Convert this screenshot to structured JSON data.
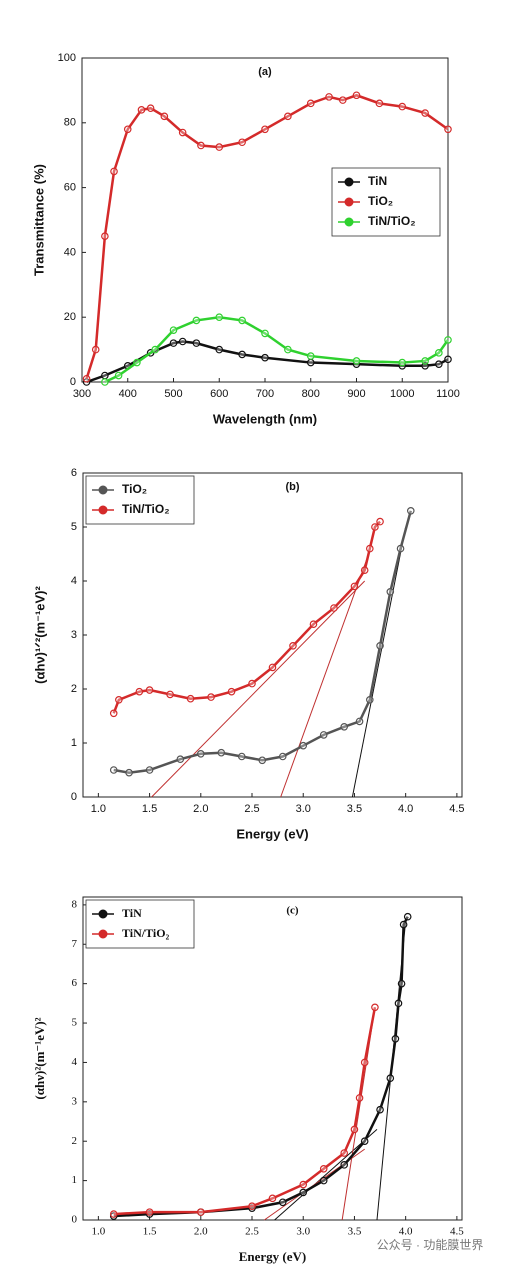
{
  "chart_data": [
    {
      "type": "line",
      "title": "(a)",
      "xlabel": "Wavelength (nm)",
      "ylabel": "Transmittance (%)",
      "xlim": [
        300,
        1100
      ],
      "xticks": [
        300,
        400,
        500,
        600,
        700,
        800,
        900,
        1000,
        1100
      ],
      "ylim": [
        0,
        100
      ],
      "yticks": [
        0,
        20,
        40,
        60,
        80,
        100
      ],
      "legend": "right",
      "series": [
        {
          "name": "TiN",
          "color": "#111111",
          "x": [
            310,
            350,
            400,
            450,
            500,
            520,
            550,
            600,
            650,
            700,
            800,
            900,
            1000,
            1050,
            1080,
            1100
          ],
          "values": [
            0,
            2,
            5,
            9,
            12,
            12.5,
            12,
            10,
            8.5,
            7.5,
            6,
            5.5,
            5,
            5,
            5.5,
            7
          ]
        },
        {
          "name": "TiO₂",
          "color": "#d42a2a",
          "x": [
            310,
            330,
            350,
            370,
            400,
            430,
            450,
            480,
            520,
            560,
            600,
            650,
            700,
            750,
            800,
            840,
            870,
            900,
            950,
            1000,
            1050,
            1100
          ],
          "values": [
            1,
            10,
            45,
            65,
            78,
            84,
            84.5,
            82,
            77,
            73,
            72.5,
            74,
            78,
            82,
            86,
            88,
            87,
            88.5,
            86,
            85,
            83,
            78
          ]
        },
        {
          "name": "TiN/TiO₂",
          "color": "#2fd12f",
          "x": [
            350,
            380,
            420,
            460,
            500,
            550,
            600,
            650,
            700,
            750,
            800,
            900,
            1000,
            1050,
            1080,
            1100
          ],
          "values": [
            0,
            2,
            6,
            10,
            16,
            19,
            20,
            19,
            15,
            10,
            8,
            6.5,
            6,
            6.5,
            9,
            13
          ]
        }
      ]
    },
    {
      "type": "line",
      "title": "(b)",
      "xlabel": "Energy (eV)",
      "ylabel": "(αhν)¹ᐟ²(m⁻¹eV)²",
      "xlim": [
        0.85,
        4.55
      ],
      "xticks": [
        {
          "value": 1,
          "label": "1.0"
        },
        1.5,
        {
          "value": 2,
          "label": "2.0"
        },
        2.5,
        {
          "value": 3,
          "label": "3.0"
        },
        3.5,
        {
          "value": 4,
          "label": "4.0"
        },
        4.5
      ],
      "ylim": [
        0,
        6
      ],
      "yticks": [
        0,
        1,
        2,
        3,
        4,
        5,
        6
      ],
      "legend": "upper left",
      "series": [
        {
          "name": "TiO₂",
          "color": "#555555",
          "x": [
            1.15,
            1.3,
            1.5,
            1.8,
            2.0,
            2.2,
            2.4,
            2.6,
            2.8,
            3.0,
            3.2,
            3.4,
            3.55,
            3.65,
            3.75,
            3.85,
            3.95,
            4.05
          ],
          "values": [
            0.5,
            0.45,
            0.5,
            0.7,
            0.8,
            0.82,
            0.75,
            0.68,
            0.75,
            0.95,
            1.15,
            1.3,
            1.4,
            1.8,
            2.8,
            3.8,
            4.6,
            5.3
          ]
        },
        {
          "name": "TiN/TiO₂",
          "color": "#d42a2a",
          "x": [
            1.15,
            1.2,
            1.4,
            1.5,
            1.7,
            1.9,
            2.1,
            2.3,
            2.5,
            2.7,
            2.9,
            3.1,
            3.3,
            3.5,
            3.6,
            3.65,
            3.7,
            3.75
          ],
          "values": [
            1.55,
            1.8,
            1.95,
            1.98,
            1.9,
            1.82,
            1.85,
            1.95,
            2.1,
            2.4,
            2.8,
            3.2,
            3.5,
            3.9,
            4.2,
            4.6,
            5.0,
            5.1
          ]
        }
      ],
      "fit_lines": [
        {
          "color": "#c03030",
          "x": [
            1.52,
            3.6
          ],
          "values": [
            0,
            4.0
          ]
        },
        {
          "color": "#c03030",
          "x": [
            2.78,
            3.62
          ],
          "values": [
            0,
            4.4
          ]
        },
        {
          "color": "#111111",
          "x": [
            3.48,
            4.0
          ],
          "values": [
            0,
            5.0
          ]
        }
      ]
    },
    {
      "type": "line",
      "title": "(c)",
      "xlabel": "Energy (eV)",
      "ylabel": "(αhν)²(m⁻¹eV)²",
      "xlim": [
        0.85,
        4.55
      ],
      "xticks": [
        {
          "value": 1,
          "label": "1.0"
        },
        1.5,
        {
          "value": 2,
          "label": "2.0"
        },
        2.5,
        {
          "value": 3,
          "label": "3.0"
        },
        3.5,
        {
          "value": 4,
          "label": "4.0"
        },
        4.5
      ],
      "ylim": [
        0,
        8.2
      ],
      "yticks": [
        0,
        1,
        2,
        3,
        4,
        5,
        6,
        7,
        8
      ],
      "legend": "upper left",
      "series": [
        {
          "name": "TiN",
          "color": "#111111",
          "x": [
            1.15,
            1.5,
            2.0,
            2.5,
            2.8,
            3.0,
            3.2,
            3.4,
            3.6,
            3.75,
            3.85,
            3.9,
            3.93,
            3.96,
            3.98,
            4.02
          ],
          "values": [
            0.1,
            0.15,
            0.2,
            0.3,
            0.45,
            0.7,
            1.0,
            1.4,
            2.0,
            2.8,
            3.6,
            4.6,
            5.5,
            6.0,
            7.5,
            7.7
          ]
        },
        {
          "name": "TiN/TiO₂",
          "color": "#d42a2a",
          "x": [
            1.15,
            1.5,
            2.0,
            2.5,
            2.7,
            3.0,
            3.2,
            3.4,
            3.5,
            3.55,
            3.6,
            3.7
          ],
          "values": [
            0.15,
            0.2,
            0.2,
            0.35,
            0.55,
            0.9,
            1.3,
            1.7,
            2.3,
            3.1,
            4.0,
            5.4
          ]
        }
      ],
      "fit_lines": [
        {
          "color": "#111111",
          "x": [
            2.72,
            3.72
          ],
          "values": [
            0,
            2.3
          ]
        },
        {
          "color": "#111111",
          "x": [
            3.72,
            4.0
          ],
          "values": [
            0,
            7.6
          ]
        },
        {
          "color": "#c03030",
          "x": [
            2.62,
            3.6
          ],
          "values": [
            0,
            1.8
          ]
        },
        {
          "color": "#c03030",
          "x": [
            3.38,
            3.7
          ],
          "values": [
            0,
            5.4
          ]
        }
      ]
    }
  ],
  "watermark": "公众号 · 功能膜世界"
}
